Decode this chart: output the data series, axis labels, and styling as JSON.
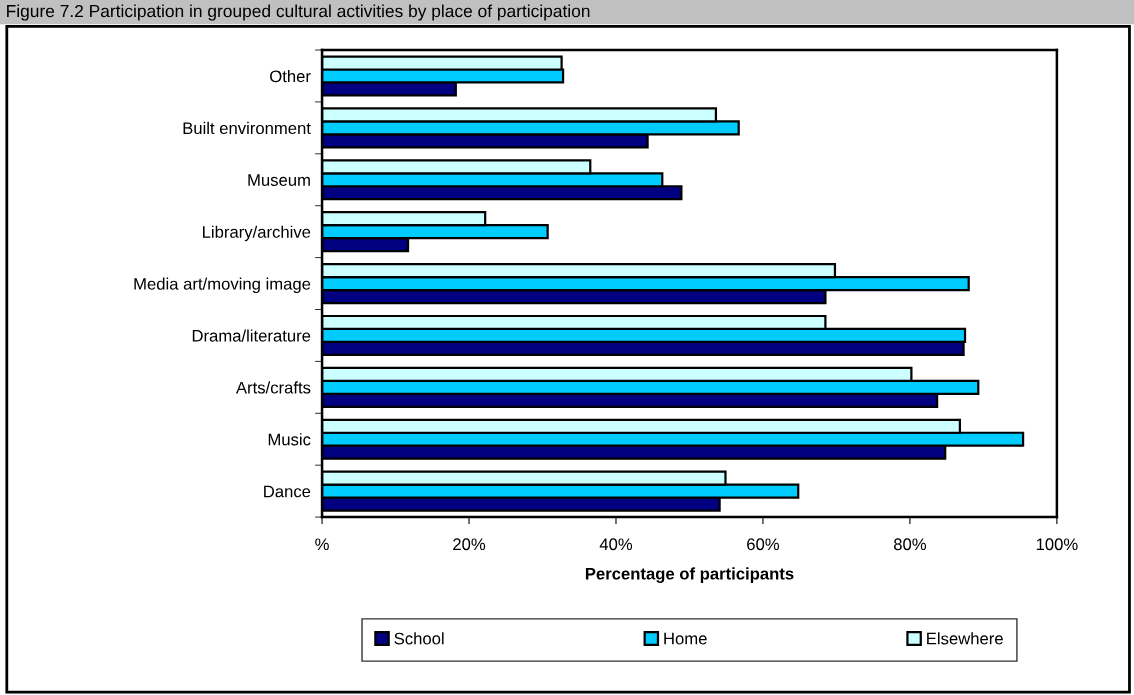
{
  "chart_data": {
    "type": "bar",
    "orientation": "horizontal",
    "title": "Figure 7.2 Participation in grouped cultural activities by place of participation",
    "xlabel": "Percentage of participants",
    "categories": [
      "Other",
      "Built environment",
      "Museum",
      "Library/archive",
      "Media art/moving image",
      "Drama/literature",
      "Arts/crafts",
      "Music",
      "Dance"
    ],
    "series": [
      {
        "name": "School",
        "color": "#000080",
        "values": [
          18.2,
          44.3,
          48.9,
          11.7,
          68.5,
          87.3,
          83.7,
          84.8,
          54.1
        ]
      },
      {
        "name": "Home",
        "color": "#00ccff",
        "values": [
          32.8,
          56.7,
          46.3,
          30.7,
          88.0,
          87.5,
          89.3,
          95.4,
          64.8
        ]
      },
      {
        "name": "Elsewhere",
        "color": "#ccffff",
        "values": [
          32.6,
          53.6,
          36.5,
          22.2,
          69.8,
          68.5,
          80.2,
          86.8,
          54.9
        ]
      }
    ],
    "xlim": [
      0,
      100
    ],
    "xticks": [
      {
        "value": 0,
        "label": "%"
      },
      {
        "value": 20,
        "label": "20%"
      },
      {
        "value": 40,
        "label": "40%"
      },
      {
        "value": 60,
        "label": "60%"
      },
      {
        "value": 80,
        "label": "80%"
      },
      {
        "value": 100,
        "label": "100%"
      }
    ],
    "grid": false,
    "legend": "bottom"
  }
}
